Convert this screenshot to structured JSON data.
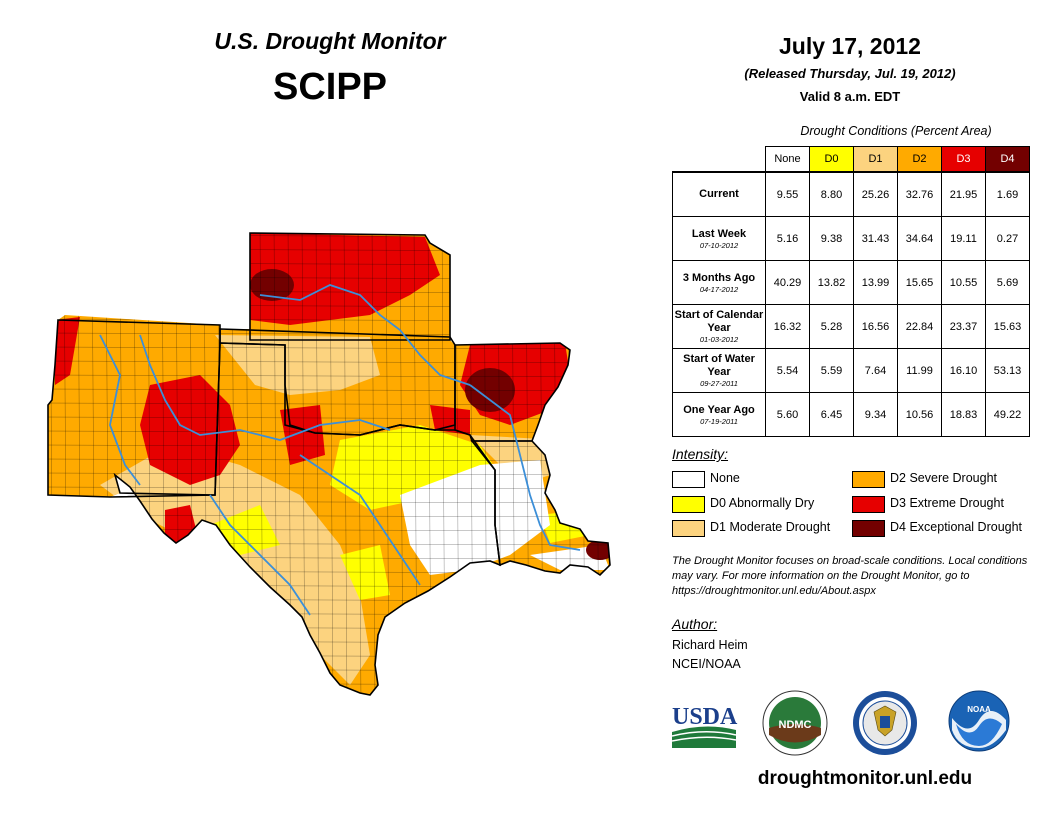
{
  "header": {
    "title": "U.S. Drought Monitor",
    "region": "SCIPP",
    "date": "July 17, 2012",
    "released": "(Released Thursday, Jul. 19, 2012)",
    "valid": "Valid 8 a.m. EDT"
  },
  "table": {
    "caption": "Drought Conditions (Percent Area)",
    "columns": [
      {
        "label": "None",
        "color": "#ffffff",
        "text": "#000000"
      },
      {
        "label": "D0",
        "color": "#ffff00",
        "text": "#000000"
      },
      {
        "label": "D1",
        "color": "#fcd37f",
        "text": "#000000"
      },
      {
        "label": "D2",
        "color": "#ffaa00",
        "text": "#000000"
      },
      {
        "label": "D3",
        "color": "#e60000",
        "text": "#ffffff"
      },
      {
        "label": "D4",
        "color": "#730000",
        "text": "#ffffff"
      }
    ],
    "rows": [
      {
        "label": "Current",
        "sub": "",
        "values": [
          "9.55",
          "8.80",
          "25.26",
          "32.76",
          "21.95",
          "1.69"
        ]
      },
      {
        "label": "Last Week",
        "sub": "07-10-2012",
        "values": [
          "5.16",
          "9.38",
          "31.43",
          "34.64",
          "19.11",
          "0.27"
        ]
      },
      {
        "label": "3 Months Ago",
        "sub": "04-17-2012",
        "values": [
          "40.29",
          "13.82",
          "13.99",
          "15.65",
          "10.55",
          "5.69"
        ]
      },
      {
        "label": "Start of Calendar Year",
        "sub": "01-03-2012",
        "values": [
          "16.32",
          "5.28",
          "16.56",
          "22.84",
          "23.37",
          "15.63"
        ]
      },
      {
        "label": "Start of Water Year",
        "sub": "09-27-2011",
        "values": [
          "5.54",
          "5.59",
          "7.64",
          "11.99",
          "16.10",
          "53.13"
        ]
      },
      {
        "label": "One Year Ago",
        "sub": "07-19-2011",
        "values": [
          "5.60",
          "6.45",
          "9.34",
          "10.56",
          "18.83",
          "49.22"
        ]
      }
    ]
  },
  "legend": {
    "title": "Intensity:",
    "items": [
      {
        "label": "None",
        "color": "#ffffff"
      },
      {
        "label": "D0 Abnormally Dry",
        "color": "#ffff00"
      },
      {
        "label": "D1 Moderate Drought",
        "color": "#fcd37f"
      },
      {
        "label": "D2 Severe Drought",
        "color": "#ffaa00"
      },
      {
        "label": "D3 Extreme Drought",
        "color": "#e60000"
      },
      {
        "label": "D4 Exceptional Drought",
        "color": "#730000"
      }
    ]
  },
  "note": "The Drought Monitor focuses on broad-scale conditions. Local conditions may vary. For more information on the Drought Monitor, go to https://droughtmonitor.unl.edu/About.aspx",
  "author": {
    "label": "Author:",
    "name": "Richard Heim",
    "org": "NCEI/NOAA"
  },
  "logos": {
    "usda": "USDA",
    "ndmc": "NDMC",
    "noaa": "NOAA"
  },
  "website": "droughtmonitor.unl.edu",
  "colors": {
    "none": "#ffffff",
    "d0": "#ffff00",
    "d1": "#fcd37f",
    "d2": "#ffaa00",
    "d3": "#e60000",
    "d4": "#730000",
    "water": "#3c8fd8",
    "usda_blue": "#1b3f8b",
    "usda_green": "#1f7a3a",
    "noaa_blue": "#1a63b5"
  }
}
